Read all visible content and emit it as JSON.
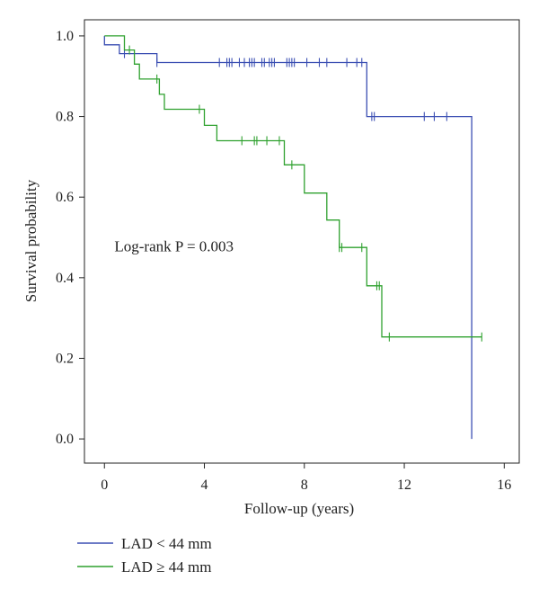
{
  "chart_data": {
    "type": "line",
    "subtype": "kaplan-meier-step",
    "xlabel": "Follow-up (years)",
    "ylabel": "Survival probability",
    "xlim": [
      -0.8,
      16.6
    ],
    "ylim": [
      -0.06,
      1.04
    ],
    "xticks": [
      0,
      4,
      8,
      12,
      16
    ],
    "xtick_labels": [
      "0",
      "4",
      "8",
      "12",
      "16"
    ],
    "yticks": [
      0.0,
      0.2,
      0.4,
      0.6,
      0.8,
      1.0
    ],
    "ytick_labels": [
      "0.0",
      "0.2",
      "0.4",
      "0.6",
      "0.8",
      "1.0"
    ],
    "grid": false,
    "legend_position": "bottom-left",
    "annotation": {
      "text": "Log-rank P = 0.003",
      "x": 0.4,
      "y": 0.465
    },
    "series": [
      {
        "name": "LAD < 44 mm",
        "color": "#3b4fb3",
        "steps": [
          [
            0,
            1.0
          ],
          [
            0,
            0.978
          ],
          [
            0.6,
            0.978
          ],
          [
            0.6,
            0.956
          ],
          [
            2.1,
            0.956
          ],
          [
            2.1,
            0.934
          ],
          [
            10.5,
            0.934
          ],
          [
            10.5,
            0.8
          ],
          [
            14.7,
            0.8
          ],
          [
            14.7,
            0.0
          ]
        ],
        "censors": [
          [
            0.8,
            0.956
          ],
          [
            2.1,
            0.934
          ],
          [
            4.6,
            0.934
          ],
          [
            4.9,
            0.934
          ],
          [
            5.0,
            0.934
          ],
          [
            5.1,
            0.934
          ],
          [
            5.4,
            0.934
          ],
          [
            5.6,
            0.934
          ],
          [
            5.8,
            0.934
          ],
          [
            5.9,
            0.934
          ],
          [
            6.0,
            0.934
          ],
          [
            6.3,
            0.934
          ],
          [
            6.4,
            0.934
          ],
          [
            6.6,
            0.934
          ],
          [
            6.7,
            0.934
          ],
          [
            6.8,
            0.934
          ],
          [
            7.3,
            0.934
          ],
          [
            7.4,
            0.934
          ],
          [
            7.5,
            0.934
          ],
          [
            7.6,
            0.934
          ],
          [
            8.1,
            0.934
          ],
          [
            8.6,
            0.934
          ],
          [
            8.9,
            0.934
          ],
          [
            9.7,
            0.934
          ],
          [
            10.1,
            0.934
          ],
          [
            10.3,
            0.934
          ],
          [
            10.7,
            0.8
          ],
          [
            10.8,
            0.8
          ],
          [
            12.8,
            0.8
          ],
          [
            13.2,
            0.8
          ],
          [
            13.7,
            0.8
          ]
        ]
      },
      {
        "name": "LAD ≥ 44 mm",
        "color": "#2fa12f",
        "steps": [
          [
            0,
            1.0
          ],
          [
            0.8,
            1.0
          ],
          [
            0.8,
            0.965
          ],
          [
            1.2,
            0.965
          ],
          [
            1.2,
            0.93
          ],
          [
            1.4,
            0.93
          ],
          [
            1.4,
            0.893
          ],
          [
            2.2,
            0.893
          ],
          [
            2.2,
            0.855
          ],
          [
            2.4,
            0.855
          ],
          [
            2.4,
            0.818
          ],
          [
            4.0,
            0.818
          ],
          [
            4.0,
            0.778
          ],
          [
            4.5,
            0.778
          ],
          [
            4.5,
            0.74
          ],
          [
            7.2,
            0.74
          ],
          [
            7.2,
            0.68
          ],
          [
            8.0,
            0.68
          ],
          [
            8.0,
            0.61
          ],
          [
            8.9,
            0.61
          ],
          [
            8.9,
            0.543
          ],
          [
            9.4,
            0.543
          ],
          [
            9.4,
            0.475
          ],
          [
            10.5,
            0.475
          ],
          [
            10.5,
            0.38
          ],
          [
            11.1,
            0.38
          ],
          [
            11.1,
            0.253
          ],
          [
            15.1,
            0.253
          ]
        ],
        "censors": [
          [
            1.0,
            0.965
          ],
          [
            2.1,
            0.893
          ],
          [
            3.8,
            0.818
          ],
          [
            5.5,
            0.74
          ],
          [
            6.0,
            0.74
          ],
          [
            6.1,
            0.74
          ],
          [
            6.5,
            0.74
          ],
          [
            7.0,
            0.74
          ],
          [
            7.5,
            0.68
          ],
          [
            9.4,
            0.475
          ],
          [
            9.5,
            0.475
          ],
          [
            10.3,
            0.475
          ],
          [
            10.9,
            0.38
          ],
          [
            11.0,
            0.38
          ],
          [
            11.4,
            0.253
          ],
          [
            15.1,
            0.253
          ]
        ]
      }
    ]
  }
}
